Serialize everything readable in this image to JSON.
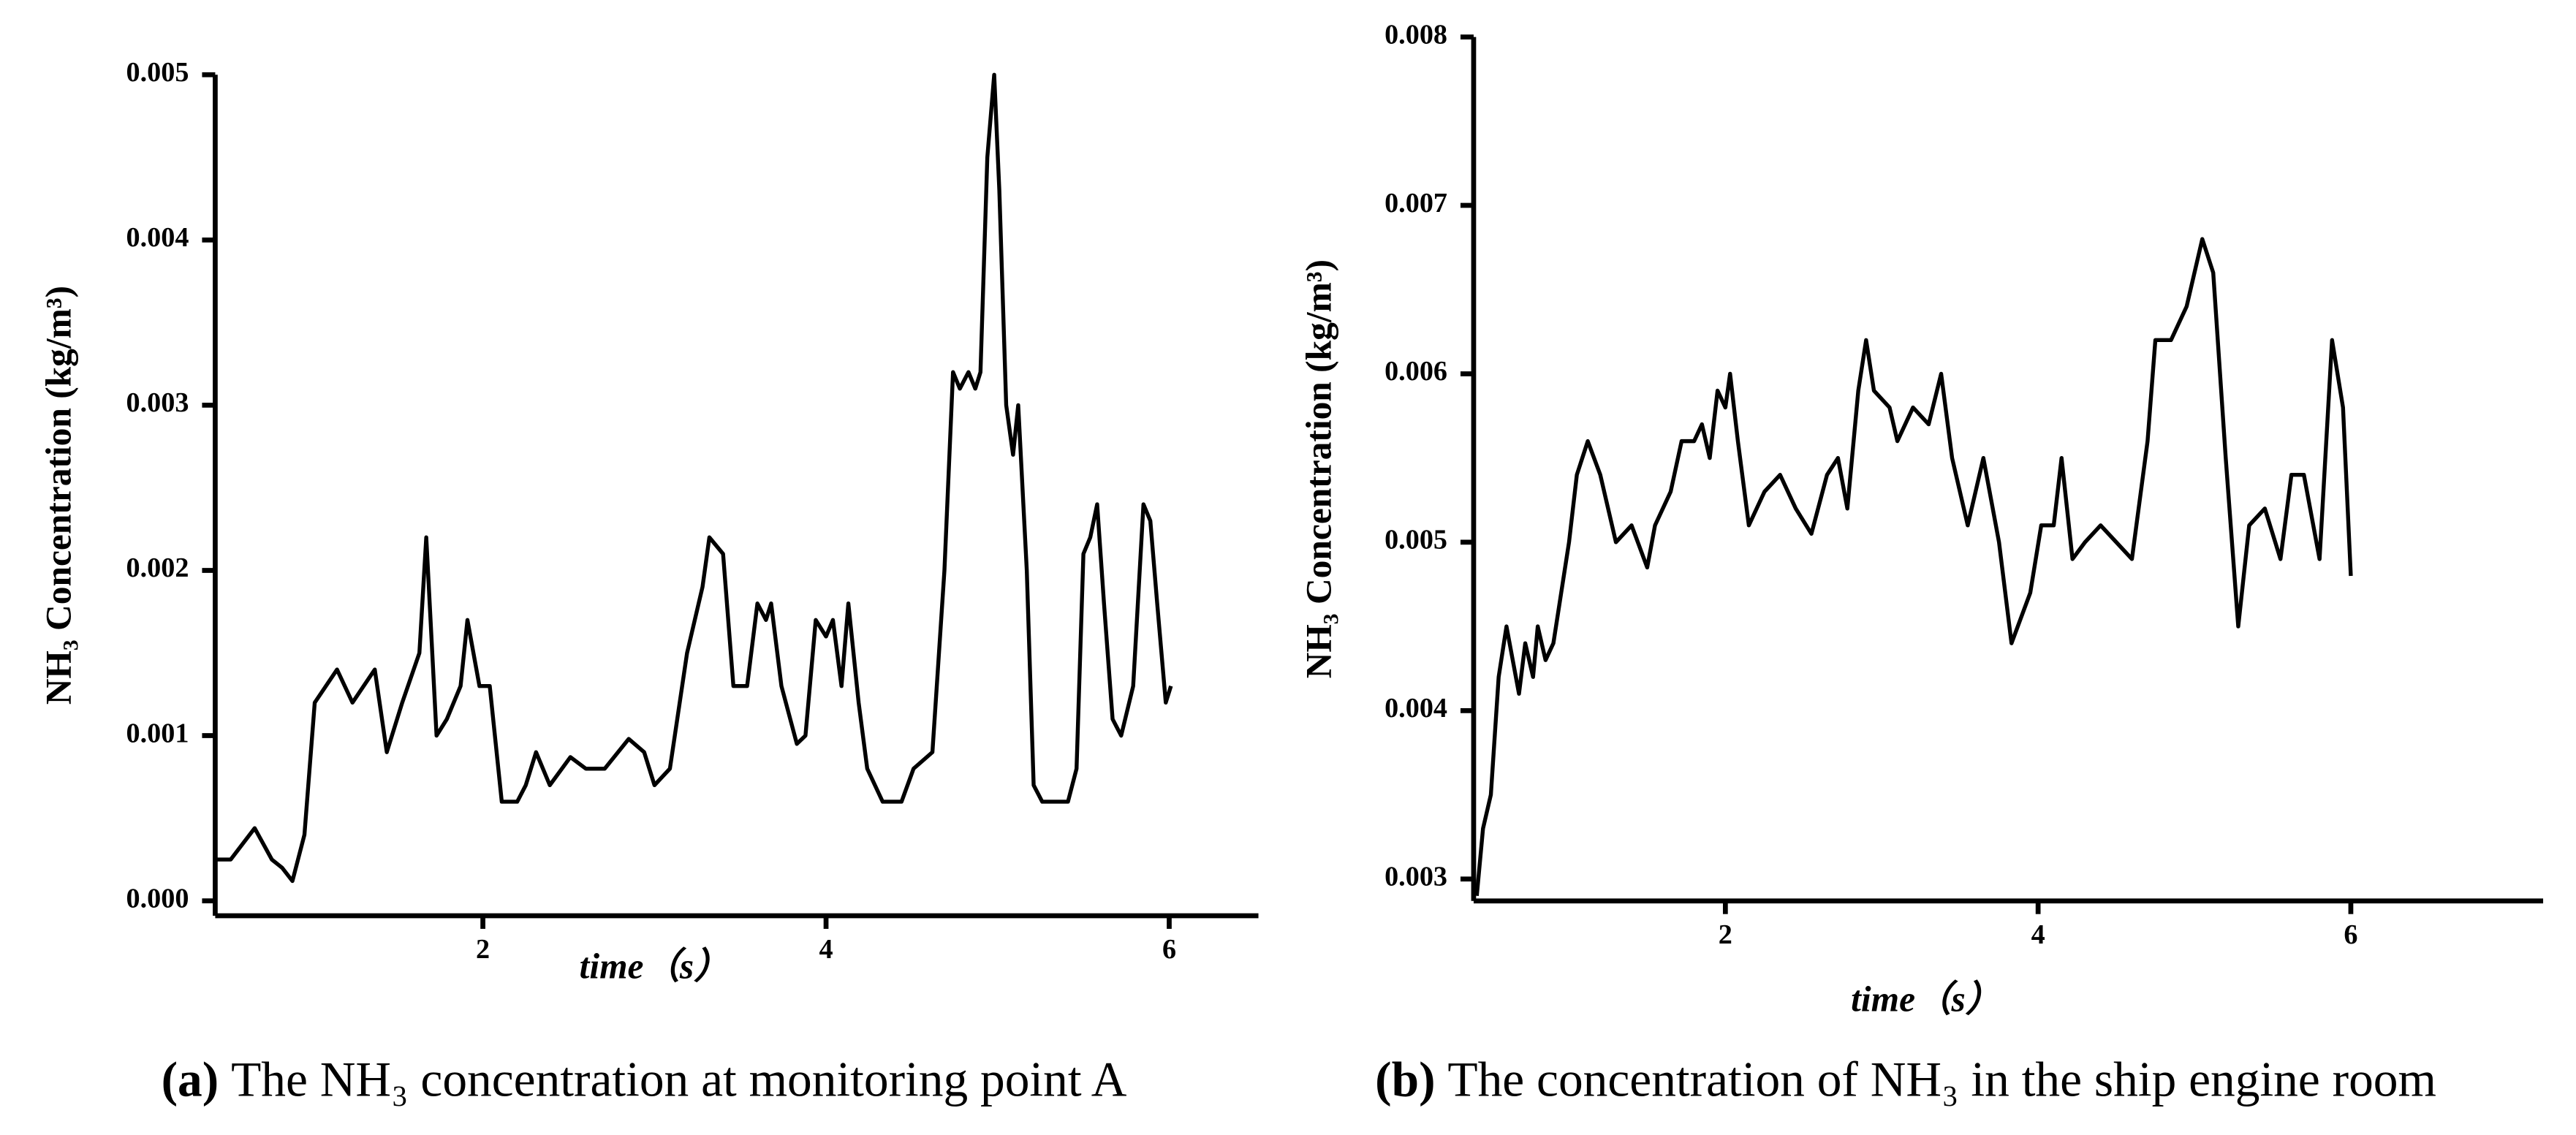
{
  "chart_data": [
    {
      "type": "line",
      "y_label": "NH₃  Concentration (kg/m³)",
      "x_label": "time（s）",
      "caption_label": "(a)",
      "caption": "The NH₃ concentration at monitoring point A",
      "xlim": [
        0.44,
        6.52
      ],
      "ylim": [
        -9e-05,
        0.005
      ],
      "xticks": [
        2,
        4,
        6
      ],
      "yticks": [
        {
          "value": 0,
          "label": "0.000"
        },
        0.001,
        0.002,
        0.003,
        0.004,
        0.005
      ],
      "series": [
        {
          "color": "#000000",
          "x": [
            0.44,
            0.53,
            0.67,
            0.77,
            0.83,
            0.89,
            0.96,
            1.02,
            1.15,
            1.24,
            1.37,
            1.44,
            1.53,
            1.63,
            1.67,
            1.73,
            1.79,
            1.87,
            1.91,
            1.98,
            2.04,
            2.11,
            2.2,
            2.25,
            2.31,
            2.39,
            2.51,
            2.6,
            2.71,
            2.85,
            2.94,
            3.0,
            3.09,
            3.19,
            3.28,
            3.32,
            3.4,
            3.46,
            3.54,
            3.6,
            3.65,
            3.68,
            3.74,
            3.83,
            3.88,
            3.94,
            4.0,
            4.04,
            4.09,
            4.13,
            4.19,
            4.24,
            4.33,
            4.44,
            4.51,
            4.62,
            4.69,
            4.74,
            4.78,
            4.83,
            4.87,
            4.9,
            4.94,
            4.98,
            5.01,
            5.05,
            5.09,
            5.12,
            5.17,
            5.21,
            5.26,
            5.33,
            5.41,
            5.46,
            5.5,
            5.54,
            5.58,
            5.62,
            5.67,
            5.72,
            5.79,
            5.85,
            5.89,
            5.93,
            5.98,
            6.01
          ],
          "values": [
            0.00025,
            0.00025,
            0.00044,
            0.00025,
            0.0002,
            0.00012,
            0.0004,
            0.0012,
            0.0014,
            0.0012,
            0.0014,
            0.0009,
            0.0012,
            0.0015,
            0.0022,
            0.001,
            0.0011,
            0.0013,
            0.0017,
            0.0013,
            0.0013,
            0.0006,
            0.0006,
            0.0007,
            0.0009,
            0.0007,
            0.00087,
            0.0008,
            0.0008,
            0.00098,
            0.0009,
            0.0007,
            0.0008,
            0.0015,
            0.0019,
            0.0022,
            0.0021,
            0.0013,
            0.0013,
            0.0018,
            0.0017,
            0.0018,
            0.0013,
            0.00095,
            0.001,
            0.0017,
            0.0016,
            0.0017,
            0.0013,
            0.0018,
            0.0012,
            0.0008,
            0.0006,
            0.0006,
            0.0008,
            0.0009,
            0.002,
            0.0032,
            0.0031,
            0.0032,
            0.0031,
            0.0032,
            0.0045,
            0.005,
            0.0043,
            0.003,
            0.0027,
            0.003,
            0.002,
            0.0007,
            0.0006,
            0.0006,
            0.0006,
            0.0008,
            0.0021,
            0.0022,
            0.0024,
            0.0018,
            0.0011,
            0.001,
            0.0013,
            0.0024,
            0.0023,
            0.0018,
            0.0012,
            0.0013
          ]
        }
      ]
    },
    {
      "type": "line",
      "y_label": "NH₃  Concentration (kg/m³)",
      "x_label": "time（s）",
      "caption_label": "(b)",
      "caption": "The concentration of NH₃ in the ship engine room",
      "xlim": [
        0.39,
        7.23
      ],
      "ylim": [
        0.00287,
        0.008
      ],
      "xticks": [
        2,
        4,
        6
      ],
      "yticks": [
        0.003,
        0.004,
        0.005,
        0.006,
        0.007,
        0.008
      ],
      "series": [
        {
          "color": "#000000",
          "x": [
            0.41,
            0.45,
            0.5,
            0.55,
            0.6,
            0.68,
            0.72,
            0.77,
            0.8,
            0.85,
            0.9,
            0.95,
            1.0,
            1.05,
            1.12,
            1.2,
            1.3,
            1.4,
            1.5,
            1.55,
            1.65,
            1.72,
            1.8,
            1.85,
            1.9,
            1.95,
            2.0,
            2.03,
            2.08,
            2.15,
            2.25,
            2.35,
            2.45,
            2.55,
            2.65,
            2.72,
            2.78,
            2.85,
            2.9,
            2.95,
            3.05,
            3.1,
            3.2,
            3.3,
            3.38,
            3.45,
            3.55,
            3.65,
            3.75,
            3.83,
            3.95,
            4.02,
            4.1,
            4.15,
            4.22,
            4.3,
            4.4,
            4.5,
            4.6,
            4.7,
            4.75,
            4.85,
            4.95,
            5.05,
            5.12,
            5.2,
            5.28,
            5.35,
            5.45,
            5.55,
            5.62,
            5.7,
            5.8,
            5.88,
            5.95,
            6.0
          ],
          "values": [
            0.0029,
            0.0033,
            0.0035,
            0.0042,
            0.0045,
            0.0041,
            0.0044,
            0.0042,
            0.0045,
            0.0043,
            0.0044,
            0.0047,
            0.005,
            0.0054,
            0.0056,
            0.0054,
            0.005,
            0.0051,
            0.00485,
            0.0051,
            0.0053,
            0.0056,
            0.0056,
            0.0057,
            0.0055,
            0.0059,
            0.0058,
            0.006,
            0.0056,
            0.0051,
            0.0053,
            0.0054,
            0.0052,
            0.00505,
            0.0054,
            0.0055,
            0.0052,
            0.0059,
            0.0062,
            0.0059,
            0.0058,
            0.0056,
            0.0058,
            0.0057,
            0.006,
            0.0055,
            0.0051,
            0.0055,
            0.005,
            0.0044,
            0.0047,
            0.0051,
            0.0051,
            0.0055,
            0.0049,
            0.005,
            0.0051,
            0.005,
            0.0049,
            0.0056,
            0.0062,
            0.0062,
            0.0064,
            0.0068,
            0.0066,
            0.0055,
            0.0045,
            0.0051,
            0.0052,
            0.0049,
            0.0054,
            0.0054,
            0.0049,
            0.0062,
            0.0058,
            0.0048
          ]
        }
      ]
    }
  ]
}
